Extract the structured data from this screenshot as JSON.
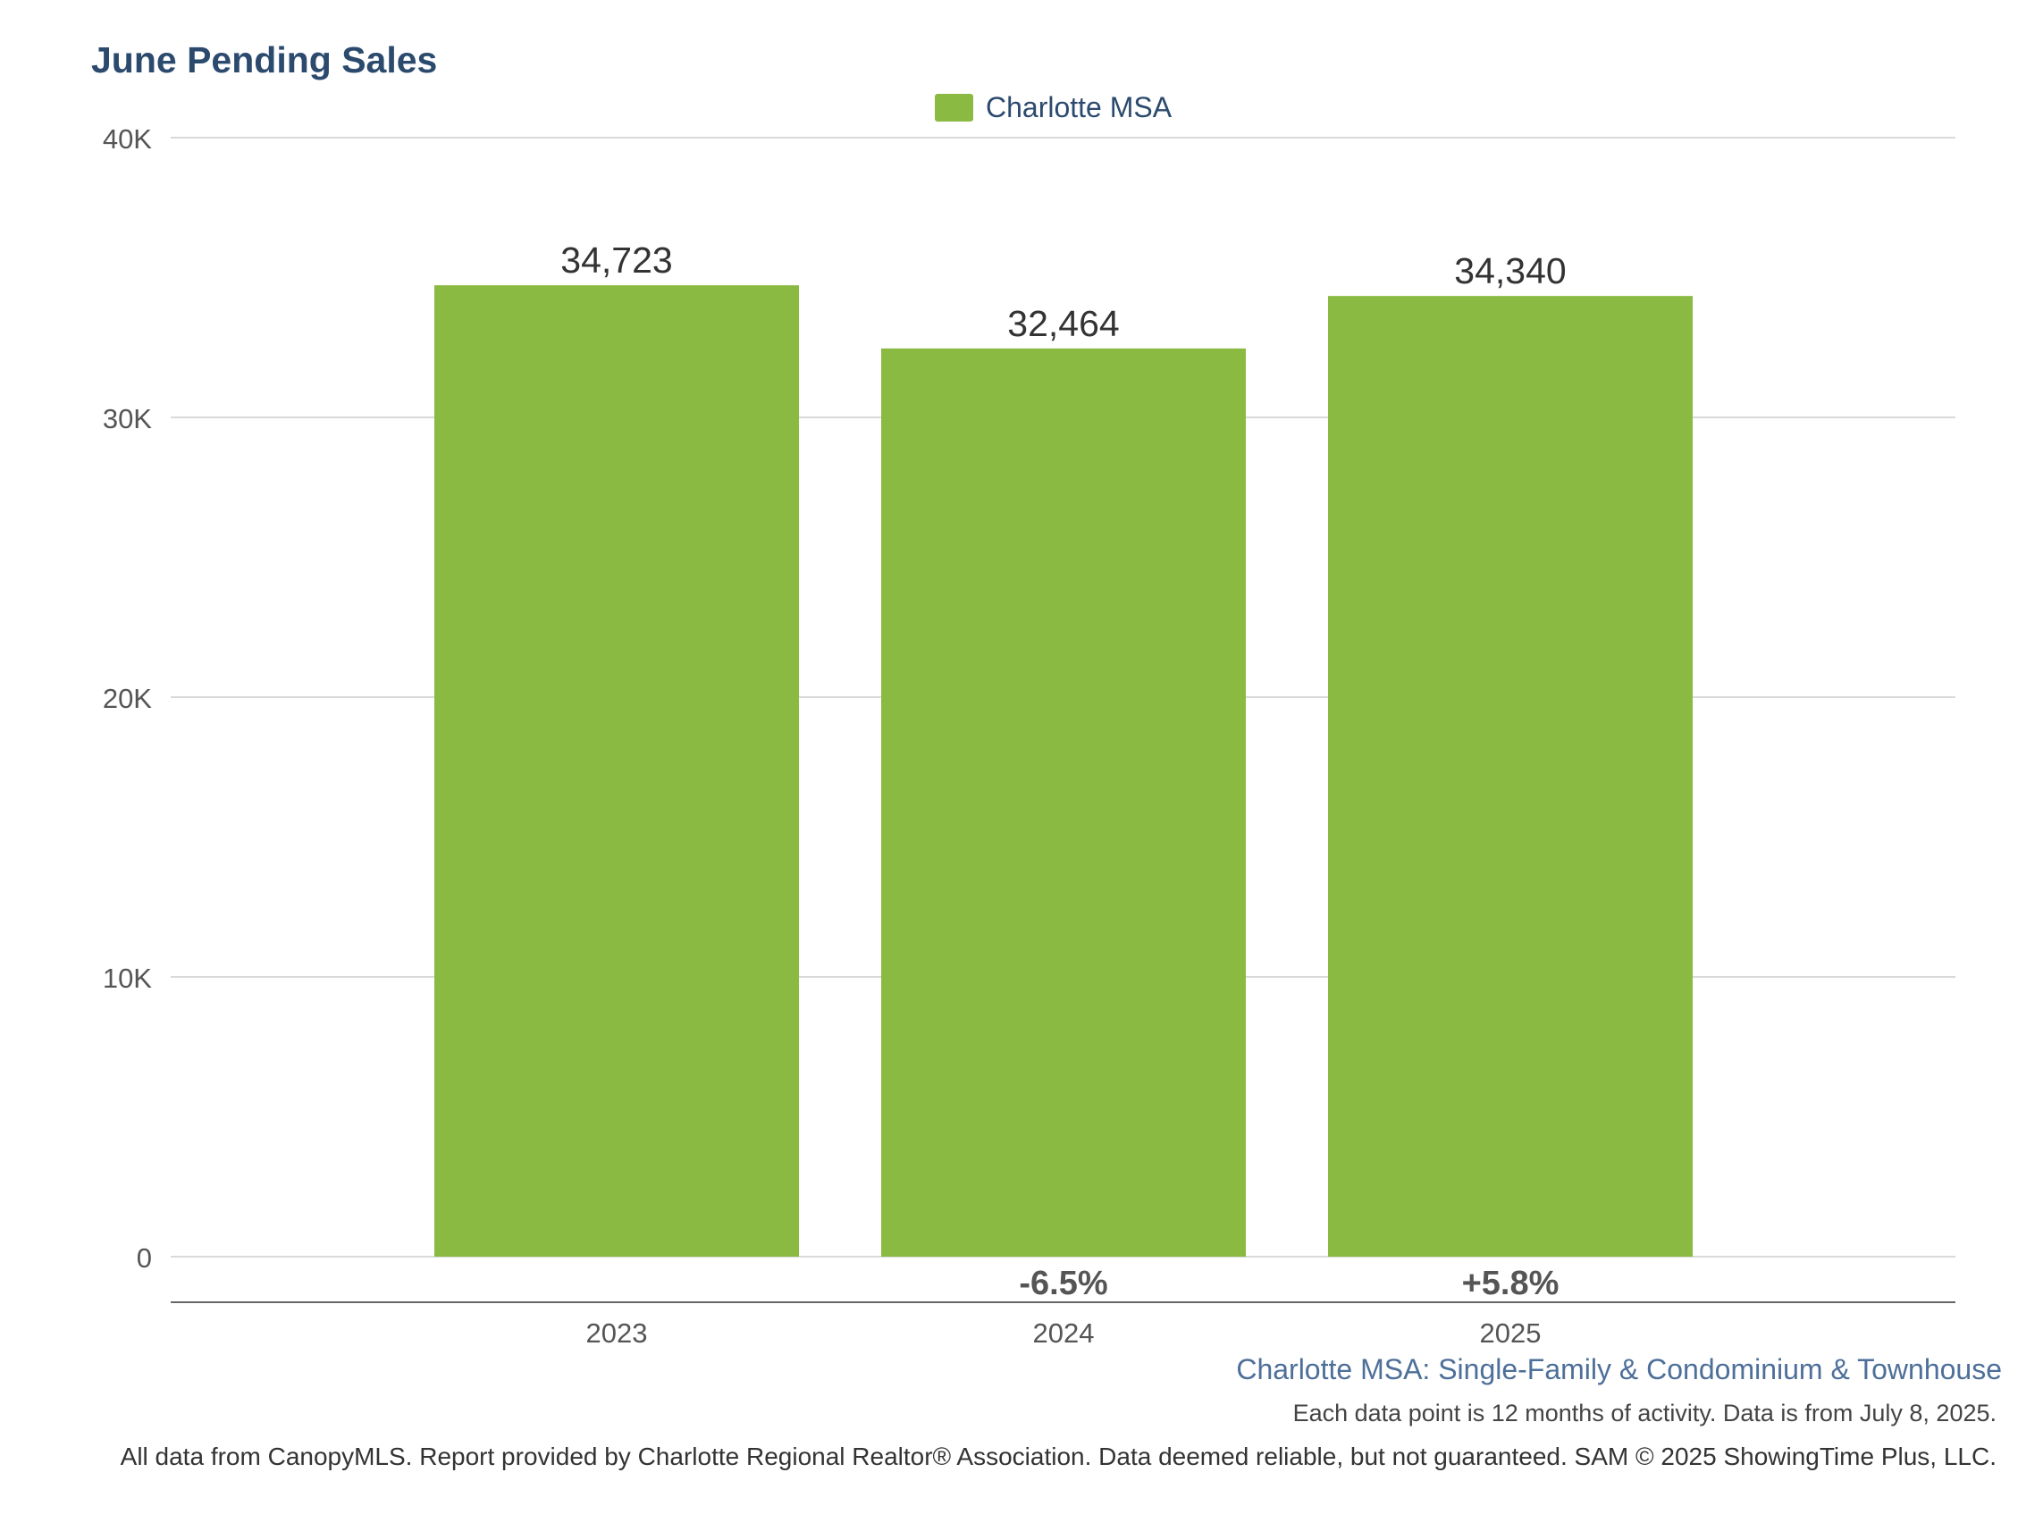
{
  "chart_data": {
    "type": "bar",
    "title": "June Pending Sales",
    "categories": [
      "2023",
      "2024",
      "2025"
    ],
    "series": [
      {
        "name": "Charlotte MSA",
        "values": [
          34723,
          32464,
          34340
        ],
        "value_labels": [
          "34,723",
          "32,464",
          "34,340"
        ],
        "color": "#8aba42"
      }
    ],
    "change_labels": [
      "",
      "-6.5%",
      "+5.8%"
    ],
    "ylim": [
      0,
      40000
    ],
    "yticks": [
      0,
      10000,
      20000,
      30000,
      40000
    ],
    "ytick_labels": [
      "0",
      "10K",
      "20K",
      "30K",
      "40K"
    ],
    "grid": true,
    "legend_position": "top-center",
    "xlabel": "",
    "ylabel": ""
  },
  "footer": {
    "subtitle": "Charlotte MSA: Single-Family & Condominium & Townhouse",
    "note": "Each data point is 12 months of activity. Data is from July 8, 2025.",
    "source": "All data from CanopyMLS. Report provided by Charlotte Regional Realtor® Association. Data deemed reliable, but not guaranteed. SAM © 2025 ShowingTime Plus, LLC."
  },
  "colors": {
    "title": "#2c4a6e",
    "bar": "#8aba42",
    "gridline": "#d9d9d9",
    "axis_text": "#555555",
    "change_text": "#555555"
  }
}
